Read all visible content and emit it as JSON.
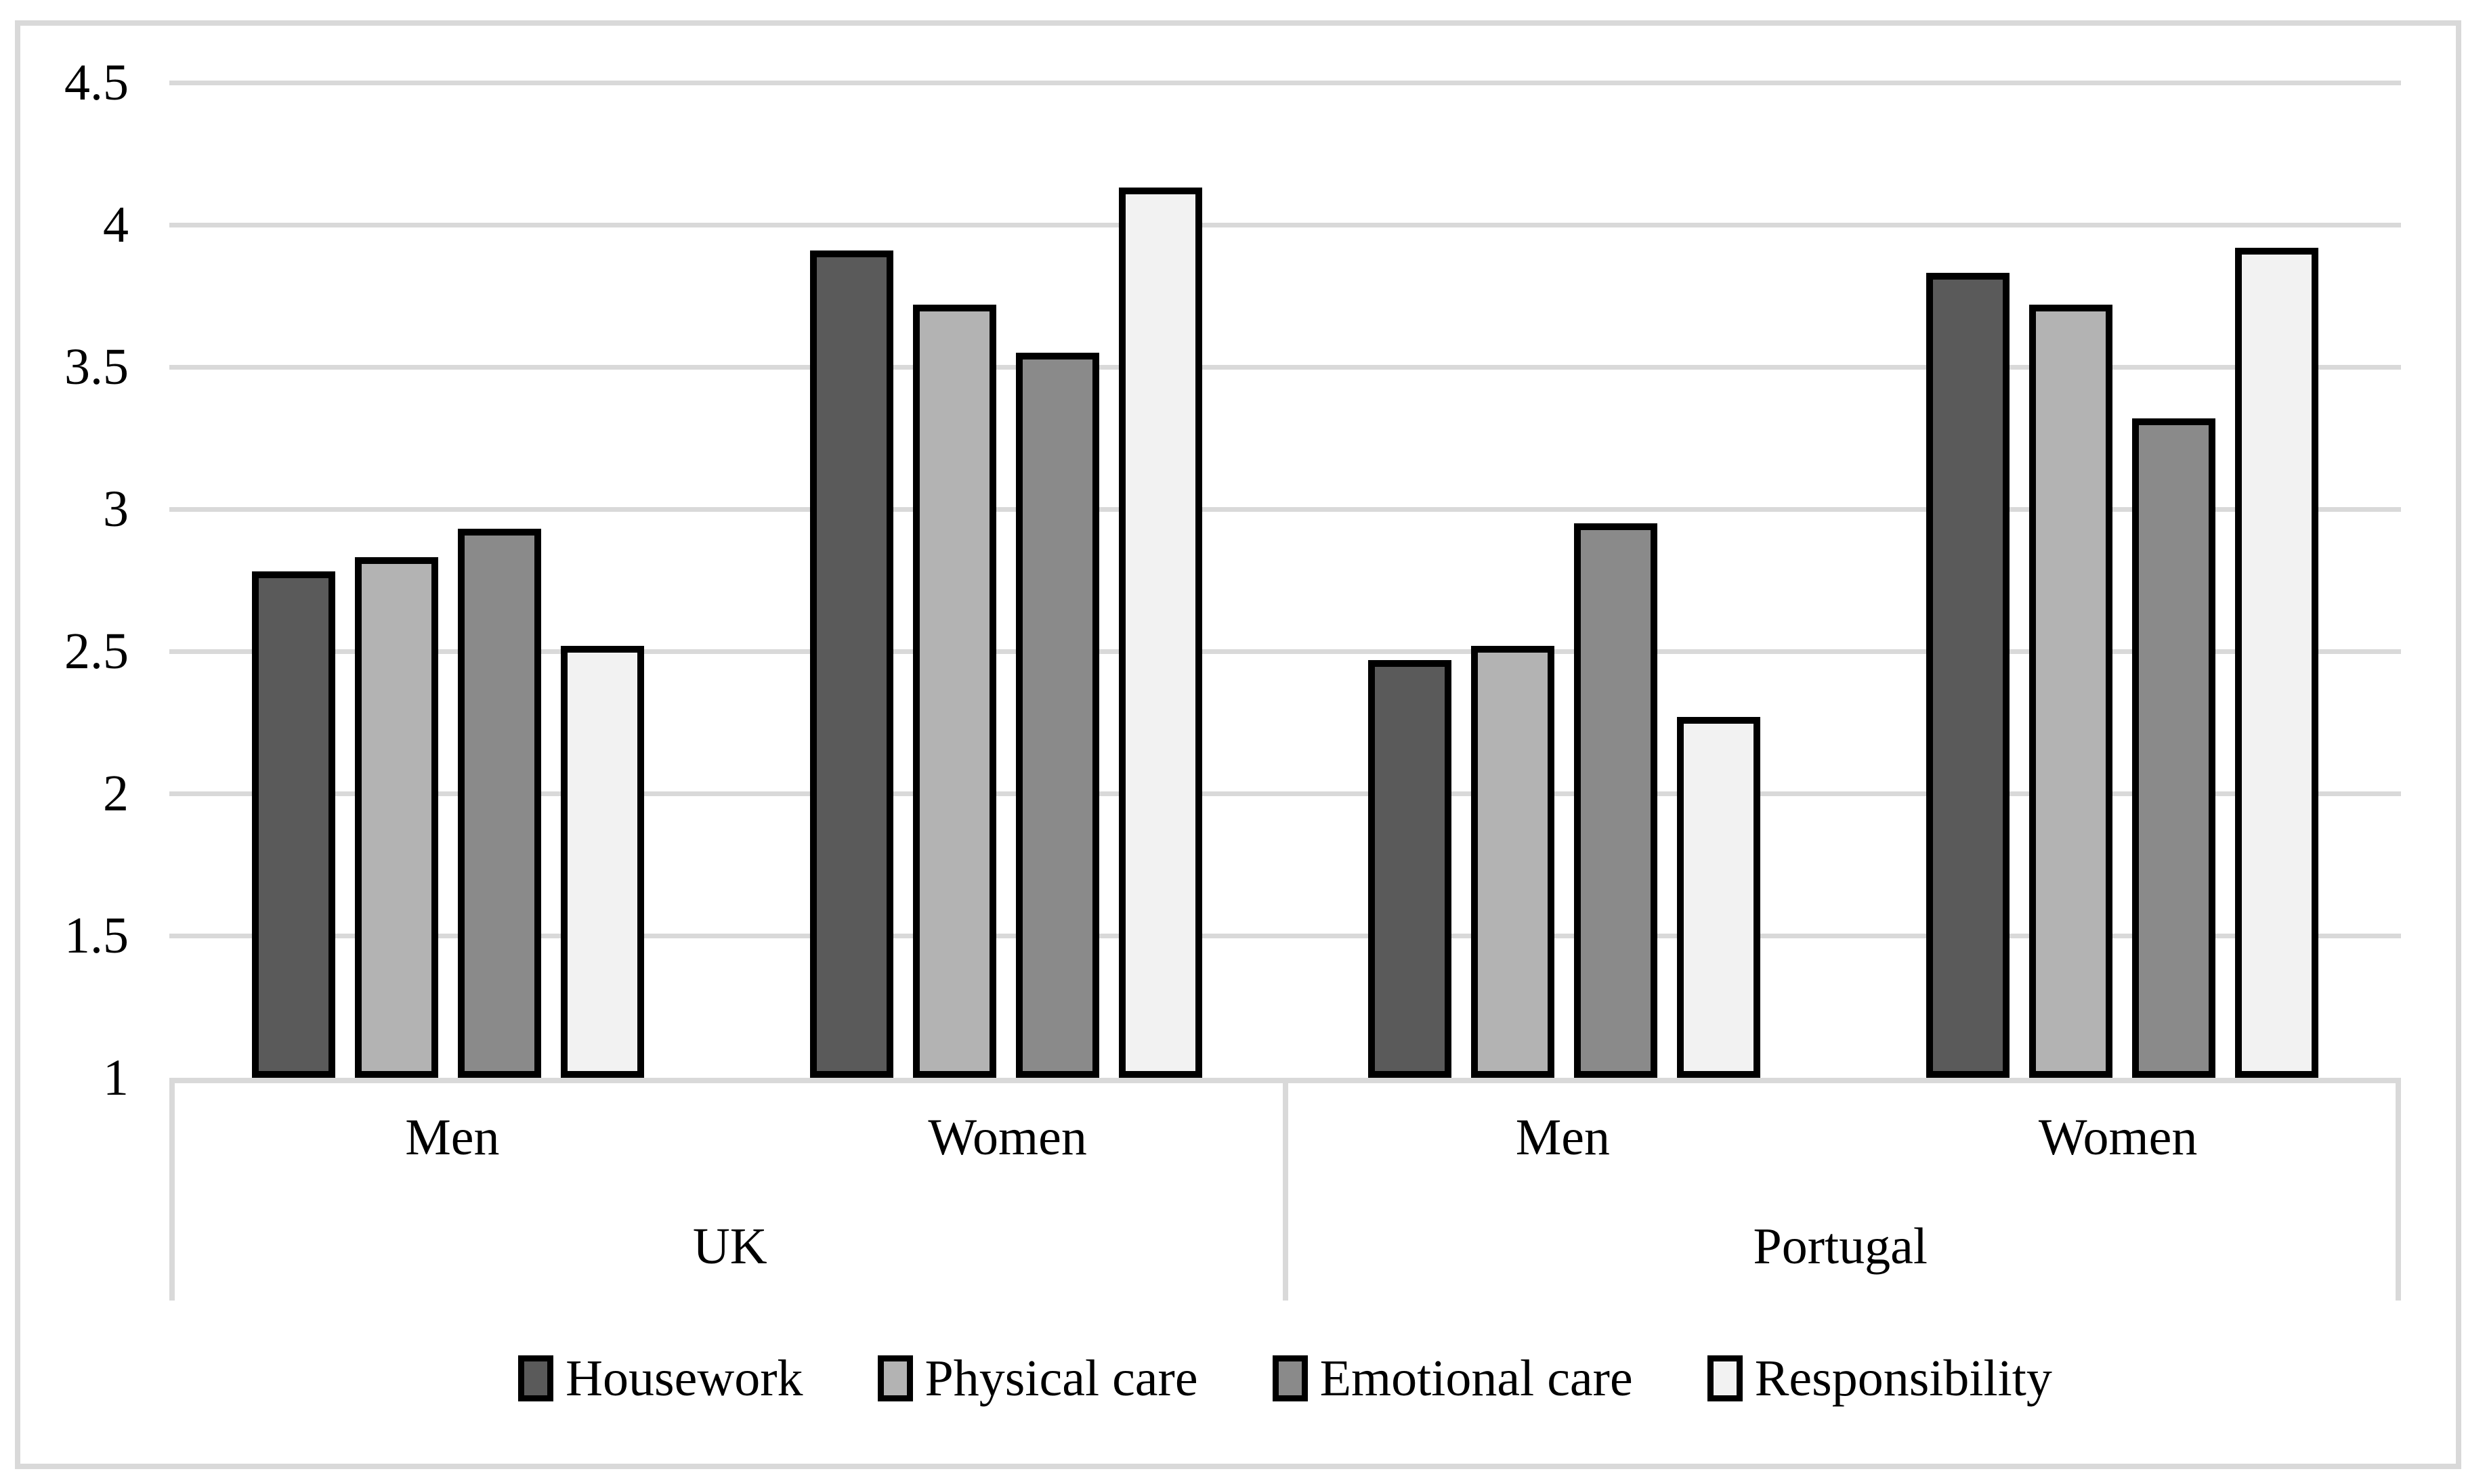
{
  "figure": {
    "background": "#ffffff",
    "frame_color": "#d9d9d9"
  },
  "chart_data": {
    "type": "bar",
    "title": "",
    "xlabel": "",
    "ylabel": "",
    "ylim": [
      1,
      4.5
    ],
    "y_tick_labels": [
      "4.5",
      "4",
      "3.5",
      "3",
      "2.5",
      "2",
      "1.5",
      "1"
    ],
    "y_tick_values": [
      4.5,
      4,
      3.5,
      3,
      2.5,
      2,
      1.5,
      1
    ],
    "grid": true,
    "gridline_color": "#d9d9d9",
    "axis_color": "#d9d9d9",
    "bar_border_color": "#000000",
    "legend_position": "bottom",
    "series": [
      {
        "name": "Housework",
        "fill": "#5a5a5a"
      },
      {
        "name": "Physical care",
        "fill": "#b3b3b3"
      },
      {
        "name": "Emotional care",
        "fill": "#8a8a8a"
      },
      {
        "name": "Responsibility",
        "fill": "#f2f2f2"
      }
    ],
    "groups": [
      {
        "label": "UK",
        "subgroups": [
          {
            "label": "Men",
            "values": [
              2.78,
              2.83,
              2.93,
              2.52
            ]
          },
          {
            "label": "Women",
            "values": [
              3.91,
              3.72,
              3.55,
              4.13
            ]
          }
        ]
      },
      {
        "label": "Portugal",
        "subgroups": [
          {
            "label": "Men",
            "values": [
              2.47,
              2.52,
              2.95,
              2.27
            ]
          },
          {
            "label": "Women",
            "values": [
              3.83,
              3.72,
              3.32,
              3.92
            ]
          }
        ]
      }
    ]
  }
}
